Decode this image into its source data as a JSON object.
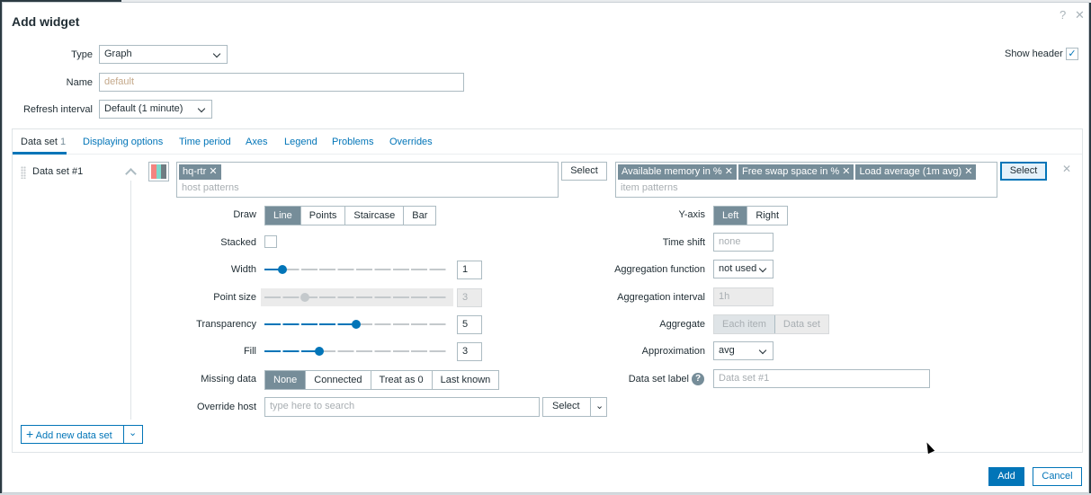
{
  "dialog": {
    "title": "Add widget",
    "help_icon": "?",
    "close_icon": "✕"
  },
  "form": {
    "type_label": "Type",
    "type_value": "Graph",
    "name_label": "Name",
    "name_placeholder": "default",
    "refresh_label": "Refresh interval",
    "refresh_value": "Default (1 minute)",
    "show_header_label": "Show header",
    "show_header_checked": true
  },
  "tabs": [
    {
      "label": "Data set",
      "count": "1"
    },
    {
      "label": "Displaying options"
    },
    {
      "label": "Time period"
    },
    {
      "label": "Axes"
    },
    {
      "label": "Legend"
    },
    {
      "label": "Problems"
    },
    {
      "label": "Overrides"
    }
  ],
  "dataset": {
    "title": "Data set #1",
    "colors": [
      "#f48480",
      "#7dd9cc",
      "#6f7c82"
    ],
    "hosts": [
      "hq-rtr"
    ],
    "host_placeholder": "host patterns",
    "items": [
      "Available memory in %",
      "Free swap space in %",
      "Load average (1m avg)"
    ],
    "item_placeholder": "item patterns",
    "select_label": "Select",
    "draw": {
      "label": "Draw",
      "options": [
        "Line",
        "Points",
        "Staircase",
        "Bar"
      ],
      "selected": "Line"
    },
    "stacked": {
      "label": "Stacked",
      "checked": false
    },
    "width": {
      "label": "Width",
      "value": "1",
      "min": 0,
      "max": 10
    },
    "point_size": {
      "label": "Point size",
      "value": "3",
      "min": 1,
      "max": 10
    },
    "transparency": {
      "label": "Transparency",
      "value": "5",
      "min": 0,
      "max": 10
    },
    "fill": {
      "label": "Fill",
      "value": "3",
      "min": 0,
      "max": 10
    },
    "missing": {
      "label": "Missing data",
      "options": [
        "None",
        "Connected",
        "Treat as 0",
        "Last known"
      ],
      "selected": "None"
    },
    "override_host": {
      "label": "Override host",
      "placeholder": "type here to search",
      "select": "Select"
    },
    "yaxis": {
      "label": "Y-axis",
      "options": [
        "Left",
        "Right"
      ],
      "selected": "Left"
    },
    "time_shift": {
      "label": "Time shift",
      "placeholder": "none"
    },
    "agg_function": {
      "label": "Aggregation function",
      "value": "not used"
    },
    "agg_interval": {
      "label": "Aggregation interval",
      "placeholder": "1h"
    },
    "aggregate": {
      "label": "Aggregate",
      "options": [
        "Each item",
        "Data set"
      ],
      "selected": "Each item"
    },
    "approximation": {
      "label": "Approximation",
      "value": "avg"
    },
    "ds_label": {
      "label": "Data set label",
      "placeholder": "Data set #1"
    }
  },
  "add_dataset_label": "Add new data set",
  "footer": {
    "add": "Add",
    "cancel": "Cancel"
  }
}
